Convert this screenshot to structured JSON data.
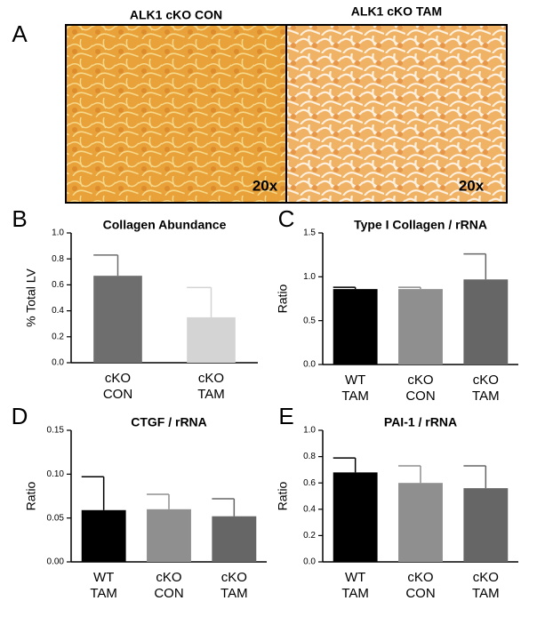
{
  "panel_a": {
    "label": "A",
    "images": [
      {
        "title": "ALK1 cKO CON",
        "magnification": "20x"
      },
      {
        "title": "ALK1 cKO TAM",
        "magnification": "20x"
      }
    ]
  },
  "chart_data": [
    {
      "type": "bar",
      "panel_label": "B",
      "title": "Collagen Abundance",
      "ylabel": "% Total LV",
      "categories": [
        "cKO\nCON",
        "cKO\nTAM"
      ],
      "values": [
        0.67,
        0.35
      ],
      "errors": [
        0.16,
        0.23
      ],
      "colors": [
        "#6e6e6e",
        "#d4d4d4"
      ],
      "ylim": [
        0,
        1.0
      ],
      "yticks": [
        {
          "value": 0,
          "label": "0.0"
        },
        {
          "value": 0.2,
          "label": "0.2"
        },
        {
          "value": 0.4,
          "label": "0.4"
        },
        {
          "value": 0.6,
          "label": "0.6"
        },
        {
          "value": 0.8,
          "label": "0.8"
        },
        {
          "value": 1.0,
          "label": "1.0"
        }
      ]
    },
    {
      "type": "bar",
      "panel_label": "C",
      "title": "Type I Collagen / rRNA",
      "ylabel": "Ratio",
      "categories": [
        "WT\nTAM",
        "cKO\nCON",
        "cKO\nTAM"
      ],
      "values": [
        0.86,
        0.86,
        0.97
      ],
      "errors": [
        0.02,
        0.02,
        0.29
      ],
      "colors": [
        "#000000",
        "#8f8f8f",
        "#666666"
      ],
      "ylim": [
        0,
        1.5
      ],
      "yticks": [
        {
          "value": 0,
          "label": "0.0"
        },
        0.5,
        {
          "value": 1.0,
          "label": "1.0"
        },
        1.5
      ]
    },
    {
      "type": "bar",
      "panel_label": "D",
      "title": "CTGF / rRNA",
      "ylabel": "Ratio",
      "categories": [
        "WT\nTAM",
        "cKO\nCON",
        "cKO\nTAM"
      ],
      "values": [
        0.059,
        0.06,
        0.052
      ],
      "errors": [
        0.038,
        0.017,
        0.02
      ],
      "colors": [
        "#000000",
        "#8f8f8f",
        "#666666"
      ],
      "ylim": [
        0,
        0.15
      ],
      "yticks": [
        {
          "value": 0,
          "label": "0.00"
        },
        0.05,
        {
          "value": 0.1,
          "label": "0.10"
        },
        0.15
      ]
    },
    {
      "type": "bar",
      "panel_label": "E",
      "title": "PAI-1 / rRNA",
      "ylabel": "Ratio",
      "categories": [
        "WT\nTAM",
        "cKO\nCON",
        "cKO\nTAM"
      ],
      "values": [
        0.68,
        0.6,
        0.56
      ],
      "errors": [
        0.11,
        0.13,
        0.17
      ],
      "colors": [
        "#000000",
        "#8f8f8f",
        "#666666"
      ],
      "ylim": [
        0,
        1.0
      ],
      "yticks": [
        {
          "value": 0,
          "label": "0.0"
        },
        0.2,
        0.4,
        0.6,
        0.8,
        {
          "value": 1.0,
          "label": "1.0"
        }
      ]
    }
  ]
}
